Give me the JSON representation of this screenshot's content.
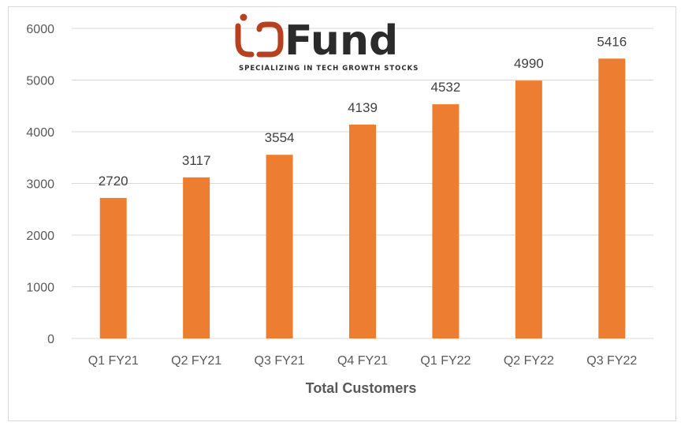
{
  "chart_data": {
    "type": "bar",
    "categories": [
      "Q1 FY21",
      "Q2 FY21",
      "Q3 FY21",
      "Q4 FY21",
      "Q1 FY22",
      "Q2 FY22",
      "Q3 FY22"
    ],
    "values": [
      2720,
      3117,
      3554,
      4139,
      4532,
      4990,
      5416
    ],
    "title": "",
    "xlabel": "Total Customers",
    "ylabel": "",
    "ylim": [
      0,
      6000
    ],
    "yticks": [
      "0",
      "1000",
      "2000",
      "3000",
      "4000",
      "5000",
      "6000"
    ],
    "grid": true,
    "legend": "none",
    "data_labels": true
  },
  "logo": {
    "brand_name": "Fund",
    "tagline": "SPECIALIZING IN TECH GROWTH STOCKS"
  },
  "colors": {
    "bar": "#ED7D31",
    "grid": "#D9D9D9",
    "logo_accent": "#B5411E",
    "logo_text": "#2B2B2B"
  }
}
